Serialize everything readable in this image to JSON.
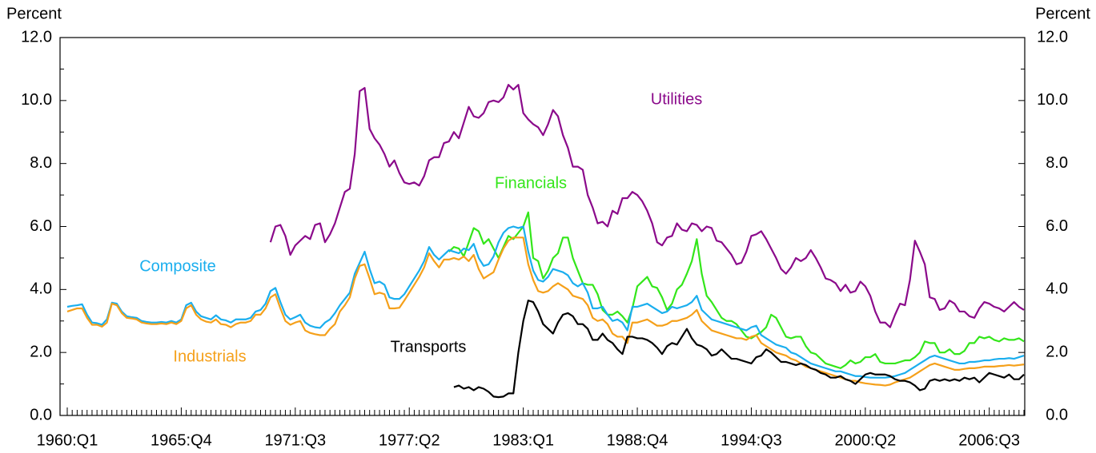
{
  "chart_data": {
    "type": "line",
    "y_label": "Percent",
    "y2_label": "Percent",
    "categories": [
      "1960:Q1",
      null,
      null,
      null,
      null,
      null,
      null,
      null,
      null,
      null,
      null,
      null,
      null,
      null,
      null,
      null,
      null,
      null,
      null,
      null,
      null,
      null,
      null,
      "1965:Q4",
      null,
      null,
      null,
      null,
      null,
      null,
      null,
      null,
      null,
      null,
      null,
      null,
      null,
      null,
      null,
      null,
      null,
      null,
      null,
      null,
      null,
      null,
      "1971:Q3",
      null,
      null,
      null,
      null,
      null,
      null,
      null,
      null,
      null,
      null,
      null,
      null,
      null,
      null,
      null,
      null,
      null,
      null,
      null,
      null,
      null,
      null,
      "1977:Q2",
      null,
      null,
      null,
      null,
      null,
      null,
      null,
      null,
      null,
      null,
      null,
      null,
      null,
      null,
      null,
      null,
      null,
      null,
      null,
      null,
      null,
      null,
      "1983:Q1",
      null,
      null,
      null,
      null,
      null,
      null,
      null,
      null,
      null,
      null,
      null,
      null,
      null,
      null,
      null,
      null,
      null,
      null,
      null,
      null,
      null,
      null,
      "1988:Q4",
      null,
      null,
      null,
      null,
      null,
      null,
      null,
      null,
      null,
      null,
      null,
      null,
      null,
      null,
      null,
      null,
      null,
      null,
      null,
      null,
      null,
      null,
      "1994:Q3",
      null,
      null,
      null,
      null,
      null,
      null,
      null,
      null,
      null,
      null,
      null,
      null,
      null,
      null,
      null,
      null,
      null,
      null,
      null,
      null,
      null,
      null,
      "2000:Q2",
      null,
      null,
      null,
      null,
      null,
      null,
      null,
      null,
      null,
      null,
      null,
      null,
      null,
      null,
      null,
      null,
      null,
      null,
      null,
      null,
      null,
      null,
      null,
      null,
      "2006:Q3",
      null,
      null,
      null,
      null,
      null,
      null,
      null
    ],
    "ylim": [
      0,
      12
    ],
    "yticks": [
      {
        "value": 0,
        "label": "0.0"
      },
      {
        "value": 2,
        "label": "2.0"
      },
      {
        "value": 4,
        "label": "4.0"
      },
      {
        "value": 6,
        "label": "6.0"
      },
      {
        "value": 8,
        "label": "8.0"
      },
      {
        "value": 10,
        "label": "10.0"
      },
      {
        "value": 12,
        "label": "12.0"
      }
    ],
    "y2lim": [
      0,
      12
    ],
    "y2ticks": [
      {
        "value": 0,
        "label": "0.0"
      },
      {
        "value": 2,
        "label": "2.0"
      },
      {
        "value": 4,
        "label": "4.0"
      },
      {
        "value": 6,
        "label": "6.0"
      },
      {
        "value": 8,
        "label": "8.0"
      },
      {
        "value": 10,
        "label": "10.0"
      },
      {
        "value": 12,
        "label": "12.0"
      }
    ],
    "series": [
      {
        "name": "Utilities",
        "color": "#8b0a8b",
        "values": [
          null,
          null,
          null,
          null,
          null,
          null,
          null,
          null,
          null,
          null,
          null,
          null,
          null,
          null,
          null,
          null,
          null,
          null,
          null,
          null,
          null,
          null,
          null,
          null,
          null,
          null,
          null,
          null,
          null,
          null,
          null,
          null,
          null,
          null,
          null,
          null,
          null,
          null,
          null,
          null,
          null,
          5.5,
          6.0,
          6.05,
          5.7,
          5.1,
          5.4,
          5.55,
          5.7,
          5.6,
          6.05,
          6.1,
          5.5,
          5.75,
          6.1,
          6.6,
          7.1,
          7.2,
          8.3,
          10.3,
          10.4,
          9.1,
          8.8,
          8.6,
          8.3,
          7.9,
          8.1,
          7.7,
          7.4,
          7.35,
          7.4,
          7.3,
          7.6,
          8.1,
          8.2,
          8.2,
          8.65,
          8.7,
          9.0,
          8.8,
          9.3,
          9.8,
          9.5,
          9.45,
          9.6,
          9.95,
          10.0,
          9.95,
          10.1,
          10.5,
          10.35,
          10.5,
          9.6,
          9.4,
          9.25,
          9.15,
          8.9,
          9.25,
          9.7,
          9.5,
          8.9,
          8.5,
          7.9,
          7.9,
          7.8,
          7.0,
          6.6,
          6.1,
          6.15,
          6.0,
          6.5,
          6.4,
          6.9,
          6.9,
          7.1,
          7.0,
          6.8,
          6.5,
          6.1,
          5.5,
          5.4,
          5.65,
          5.7,
          6.1,
          5.9,
          5.85,
          6.1,
          6.05,
          5.85,
          6.0,
          5.95,
          5.55,
          5.5,
          5.3,
          5.1,
          4.8,
          4.85,
          5.2,
          5.7,
          5.75,
          5.85,
          5.6,
          5.3,
          5.0,
          4.65,
          4.5,
          4.7,
          5.0,
          4.9,
          5.0,
          5.25,
          5.0,
          4.7,
          4.35,
          4.3,
          4.2,
          3.95,
          4.15,
          3.9,
          3.95,
          4.25,
          4.1,
          3.8,
          3.3,
          2.95,
          2.95,
          2.8,
          3.2,
          3.55,
          3.5,
          4.3,
          5.55,
          5.2,
          4.8,
          3.75,
          3.7,
          3.35,
          3.4,
          3.65,
          3.55,
          3.3,
          3.3,
          3.15,
          3.1,
          3.4,
          3.6,
          3.55,
          3.45,
          3.4,
          3.3,
          3.45,
          3.6,
          3.45,
          3.35
        ]
      },
      {
        "name": "Financials",
        "color": "#33e61a",
        "values": [
          null,
          null,
          null,
          null,
          null,
          null,
          null,
          null,
          null,
          null,
          null,
          null,
          null,
          null,
          null,
          null,
          null,
          null,
          null,
          null,
          null,
          null,
          null,
          null,
          null,
          null,
          null,
          null,
          null,
          null,
          null,
          null,
          null,
          null,
          null,
          null,
          null,
          null,
          null,
          null,
          null,
          null,
          null,
          null,
          null,
          null,
          null,
          null,
          null,
          null,
          null,
          null,
          null,
          null,
          null,
          null,
          null,
          null,
          null,
          null,
          null,
          null,
          null,
          null,
          null,
          null,
          null,
          null,
          null,
          null,
          null,
          null,
          null,
          null,
          null,
          null,
          null,
          5.2,
          5.35,
          5.3,
          5.05,
          5.5,
          5.95,
          5.85,
          5.45,
          5.6,
          5.3,
          5.0,
          5.35,
          5.7,
          5.6,
          5.8,
          6.0,
          6.45,
          5.0,
          4.9,
          4.35,
          4.6,
          5.0,
          5.15,
          5.65,
          5.65,
          5.0,
          4.6,
          4.2,
          4.15,
          4.15,
          3.85,
          3.35,
          3.2,
          3.2,
          3.3,
          3.15,
          2.95,
          3.4,
          4.1,
          4.25,
          4.4,
          4.1,
          4.05,
          3.75,
          3.35,
          3.55,
          4.0,
          4.15,
          4.5,
          4.9,
          5.6,
          4.5,
          3.8,
          3.6,
          3.35,
          3.1,
          3.0,
          3.0,
          2.9,
          2.7,
          2.5,
          2.45,
          2.55,
          2.65,
          2.8,
          3.2,
          3.1,
          2.8,
          2.5,
          2.45,
          2.5,
          2.5,
          2.2,
          2.0,
          1.95,
          1.8,
          1.65,
          1.6,
          1.55,
          1.5,
          1.6,
          1.75,
          1.65,
          1.7,
          1.85,
          1.85,
          1.95,
          1.7,
          1.65,
          1.65,
          1.65,
          1.7,
          1.75,
          1.75,
          1.85,
          2.0,
          2.35,
          2.3,
          2.3,
          2.0,
          2.0,
          2.1,
          1.95,
          1.95,
          2.05,
          2.3,
          2.3,
          2.5,
          2.45,
          2.5,
          2.4,
          2.35,
          2.45,
          2.4,
          2.4,
          2.45,
          2.35
        ]
      },
      {
        "name": "Composite",
        "color": "#1aaeee",
        "values": [
          3.45,
          3.48,
          3.5,
          3.53,
          3.2,
          2.95,
          2.93,
          2.88,
          3.05,
          3.58,
          3.55,
          3.3,
          3.15,
          3.12,
          3.1,
          3.0,
          2.97,
          2.95,
          2.95,
          2.97,
          2.95,
          3.0,
          2.95,
          3.05,
          3.5,
          3.58,
          3.3,
          3.15,
          3.1,
          3.05,
          3.18,
          3.05,
          3.02,
          2.95,
          3.05,
          3.05,
          3.05,
          3.1,
          3.3,
          3.35,
          3.55,
          3.95,
          4.05,
          3.6,
          3.2,
          3.05,
          3.12,
          3.2,
          2.95,
          2.85,
          2.8,
          2.78,
          2.95,
          3.05,
          3.25,
          3.5,
          3.7,
          3.9,
          4.5,
          4.85,
          5.2,
          4.65,
          4.2,
          4.25,
          4.15,
          3.75,
          3.7,
          3.7,
          3.85,
          4.1,
          4.35,
          4.6,
          4.9,
          5.35,
          5.1,
          4.95,
          5.1,
          5.25,
          5.2,
          5.15,
          5.3,
          5.25,
          5.45,
          5.0,
          4.75,
          4.8,
          5.05,
          5.5,
          5.8,
          5.95,
          6.0,
          5.95,
          6.0,
          5.2,
          4.6,
          4.3,
          4.25,
          4.4,
          4.65,
          4.6,
          4.55,
          4.45,
          4.2,
          4.1,
          4.2,
          3.9,
          3.4,
          3.4,
          3.45,
          3.2,
          3.0,
          3.05,
          2.95,
          2.7,
          3.45,
          3.45,
          3.5,
          3.55,
          3.45,
          3.35,
          3.25,
          3.3,
          3.45,
          3.4,
          3.45,
          3.5,
          3.6,
          3.8,
          3.35,
          3.2,
          3.05,
          3.0,
          2.95,
          2.9,
          2.85,
          2.8,
          2.75,
          2.7,
          2.8,
          2.85,
          2.55,
          2.45,
          2.35,
          2.25,
          2.2,
          2.15,
          2.0,
          1.95,
          1.85,
          1.75,
          1.65,
          1.6,
          1.55,
          1.5,
          1.45,
          1.4,
          1.4,
          1.35,
          1.3,
          1.25,
          1.25,
          1.22,
          1.2,
          1.2,
          1.2,
          1.2,
          1.22,
          1.25,
          1.3,
          1.35,
          1.45,
          1.55,
          1.65,
          1.75,
          1.85,
          1.9,
          1.85,
          1.8,
          1.75,
          1.7,
          1.65,
          1.65,
          1.7,
          1.7,
          1.72,
          1.75,
          1.75,
          1.78,
          1.8,
          1.8,
          1.82,
          1.8,
          1.85,
          1.9
        ]
      },
      {
        "name": "Industrials",
        "color": "#f5a01a",
        "values": [
          3.3,
          3.35,
          3.4,
          3.4,
          3.1,
          2.88,
          2.88,
          2.82,
          2.95,
          3.55,
          3.5,
          3.25,
          3.1,
          3.08,
          3.05,
          2.95,
          2.92,
          2.9,
          2.9,
          2.92,
          2.9,
          2.95,
          2.9,
          3.0,
          3.4,
          3.5,
          3.2,
          3.05,
          2.98,
          2.95,
          3.05,
          2.9,
          2.88,
          2.8,
          2.9,
          2.95,
          2.95,
          3.0,
          3.2,
          3.2,
          3.4,
          3.75,
          3.85,
          3.4,
          3.0,
          2.88,
          2.95,
          3.0,
          2.7,
          2.62,
          2.58,
          2.55,
          2.55,
          2.75,
          2.9,
          3.3,
          3.5,
          3.75,
          4.35,
          4.75,
          4.8,
          4.35,
          3.85,
          3.9,
          3.85,
          3.4,
          3.4,
          3.42,
          3.65,
          3.9,
          4.15,
          4.4,
          4.7,
          5.15,
          4.9,
          4.7,
          4.95,
          4.95,
          5.0,
          4.95,
          5.05,
          4.9,
          5.1,
          4.65,
          4.35,
          4.45,
          4.55,
          4.95,
          5.3,
          5.55,
          5.65,
          5.65,
          5.65,
          4.8,
          4.3,
          3.95,
          3.9,
          3.95,
          4.1,
          4.2,
          4.1,
          4.0,
          3.8,
          3.75,
          3.7,
          3.5,
          3.1,
          3.0,
          3.05,
          2.9,
          2.6,
          2.5,
          2.5,
          2.3,
          2.95,
          2.95,
          3.0,
          3.05,
          2.95,
          2.85,
          2.85,
          2.9,
          3.0,
          3.0,
          3.05,
          3.1,
          3.2,
          3.35,
          3.0,
          2.85,
          2.7,
          2.65,
          2.6,
          2.55,
          2.5,
          2.45,
          2.45,
          2.4,
          2.5,
          2.55,
          2.3,
          2.2,
          2.1,
          2.0,
          1.95,
          1.9,
          1.8,
          1.75,
          1.65,
          1.55,
          1.5,
          1.45,
          1.4,
          1.35,
          1.3,
          1.25,
          1.2,
          1.15,
          1.1,
          1.1,
          1.05,
          1.02,
          1.0,
          0.98,
          0.97,
          0.95,
          0.98,
          1.05,
          1.1,
          1.15,
          1.2,
          1.3,
          1.4,
          1.5,
          1.6,
          1.65,
          1.6,
          1.55,
          1.5,
          1.45,
          1.45,
          1.48,
          1.5,
          1.5,
          1.52,
          1.55,
          1.55,
          1.55,
          1.57,
          1.58,
          1.6,
          1.58,
          1.6,
          1.62
        ]
      },
      {
        "name": "Transports",
        "color": "#000000",
        "values": [
          null,
          null,
          null,
          null,
          null,
          null,
          null,
          null,
          null,
          null,
          null,
          null,
          null,
          null,
          null,
          null,
          null,
          null,
          null,
          null,
          null,
          null,
          null,
          null,
          null,
          null,
          null,
          null,
          null,
          null,
          null,
          null,
          null,
          null,
          null,
          null,
          null,
          null,
          null,
          null,
          null,
          null,
          null,
          null,
          null,
          null,
          null,
          null,
          null,
          null,
          null,
          null,
          null,
          null,
          null,
          null,
          null,
          null,
          null,
          null,
          null,
          null,
          null,
          null,
          null,
          null,
          null,
          null,
          null,
          null,
          null,
          null,
          null,
          null,
          null,
          null,
          null,
          null,
          0.9,
          0.95,
          0.85,
          0.9,
          0.8,
          0.9,
          0.85,
          0.75,
          0.6,
          0.58,
          0.6,
          0.7,
          0.7,
          2.0,
          3.0,
          3.65,
          3.6,
          3.3,
          2.9,
          2.75,
          2.6,
          2.95,
          3.2,
          3.25,
          3.15,
          2.9,
          2.9,
          2.75,
          2.4,
          2.4,
          2.6,
          2.4,
          2.3,
          2.1,
          1.95,
          2.5,
          2.5,
          2.45,
          2.45,
          2.4,
          2.3,
          2.15,
          1.95,
          2.2,
          2.3,
          2.25,
          2.5,
          2.75,
          2.45,
          2.25,
          2.2,
          2.1,
          1.9,
          1.95,
          2.1,
          1.95,
          1.8,
          1.8,
          1.75,
          1.7,
          1.65,
          1.85,
          1.9,
          2.1,
          2.0,
          1.85,
          1.7,
          1.7,
          1.65,
          1.6,
          1.65,
          1.6,
          1.5,
          1.45,
          1.35,
          1.3,
          1.2,
          1.2,
          1.25,
          1.15,
          1.1,
          1.0,
          1.15,
          1.3,
          1.35,
          1.3,
          1.3,
          1.3,
          1.25,
          1.15,
          1.1,
          1.1,
          1.05,
          0.95,
          0.8,
          0.85,
          1.1,
          1.15,
          1.1,
          1.15,
          1.1,
          1.15,
          1.1,
          1.2,
          1.15,
          1.2,
          1.05,
          1.2,
          1.35,
          1.3,
          1.25,
          1.2,
          1.3,
          1.15,
          1.15,
          1.3
        ]
      }
    ]
  }
}
